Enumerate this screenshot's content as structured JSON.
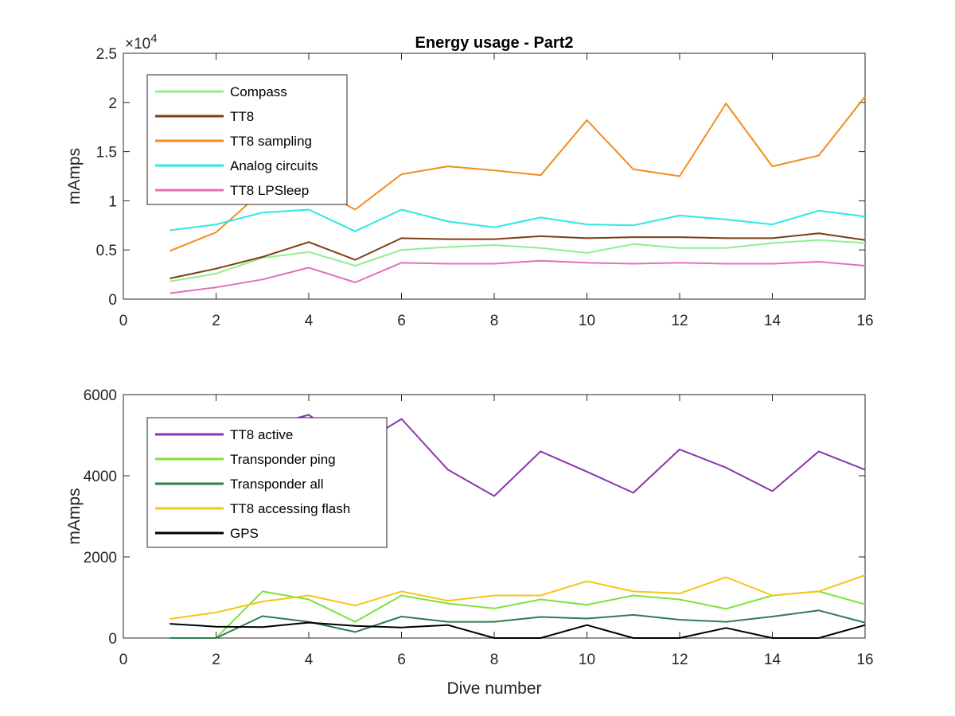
{
  "chart_data": [
    {
      "type": "line",
      "title": "Energy usage - Part2",
      "xlabel": "",
      "ylabel": "mAmps",
      "xlim": [
        0,
        16
      ],
      "ylim": [
        0,
        25000
      ],
      "xticks": [
        0,
        2,
        4,
        6,
        8,
        10,
        12,
        14,
        16
      ],
      "yticks": [
        0,
        5000,
        10000,
        15000,
        20000,
        25000
      ],
      "ytick_labels": [
        "0",
        "0.5",
        "1",
        "1.5",
        "2",
        "2.5"
      ],
      "y_exponent": {
        "base": "×10",
        "power": "4"
      },
      "legend_position": "top-left",
      "grid": false,
      "x": [
        1,
        2,
        3,
        4,
        5,
        6,
        7,
        8,
        9,
        10,
        11,
        12,
        13,
        14,
        15,
        16
      ],
      "series": [
        {
          "name": "Compass",
          "color": "#90ee90",
          "values": [
            1800,
            2600,
            4200,
            4800,
            3400,
            5000,
            5300,
            5500,
            5200,
            4700,
            5600,
            5200,
            5200,
            5700,
            6000,
            5700
          ]
        },
        {
          "name": "TT8",
          "color": "#7b3f13",
          "values": [
            2100,
            3100,
            4300,
            5800,
            4000,
            6200,
            6100,
            6100,
            6400,
            6200,
            6300,
            6300,
            6200,
            6200,
            6700,
            6000
          ]
        },
        {
          "name": "TT8 sampling",
          "color": "#f28c1e",
          "values": [
            4900,
            6800,
            11000,
            11700,
            9100,
            12700,
            13500,
            13100,
            12600,
            18200,
            13200,
            12500,
            19900,
            13500,
            14600,
            20600
          ]
        },
        {
          "name": "Analog circuits",
          "color": "#2ee6e6",
          "values": [
            7000,
            7600,
            8800,
            9100,
            6900,
            9100,
            7900,
            7300,
            8300,
            7600,
            7500,
            8500,
            8100,
            7600,
            9000,
            8400
          ]
        },
        {
          "name": "TT8 LPSleep",
          "color": "#e36fb7",
          "values": [
            600,
            1200,
            2000,
            3200,
            1700,
            3700,
            3600,
            3600,
            3900,
            3700,
            3600,
            3700,
            3600,
            3600,
            3800,
            3400
          ]
        }
      ]
    },
    {
      "type": "line",
      "title": "",
      "xlabel": "Dive number",
      "ylabel": "mAmps",
      "xlim": [
        0,
        16
      ],
      "ylim": [
        0,
        6000
      ],
      "xticks": [
        0,
        2,
        4,
        6,
        8,
        10,
        12,
        14,
        16
      ],
      "yticks": [
        0,
        2000,
        4000,
        6000
      ],
      "ytick_labels": [
        "0",
        "2000",
        "4000",
        "6000"
      ],
      "legend_position": "top-left",
      "grid": false,
      "x": [
        1,
        2,
        3,
        4,
        5,
        6,
        7,
        8,
        9,
        10,
        11,
        12,
        13,
        14,
        15,
        16
      ],
      "series": [
        {
          "name": "TT8 active",
          "color": "#8a35b0",
          "values": [
            5000,
            5000,
            5200,
            5500,
            4700,
            5400,
            4150,
            3500,
            4600,
            4100,
            3580,
            4650,
            4200,
            3620,
            4600,
            4150
          ]
        },
        {
          "name": "Transponder ping",
          "color": "#7ee23a",
          "values": [
            0,
            0,
            1150,
            950,
            400,
            1050,
            850,
            730,
            950,
            820,
            1050,
            950,
            720,
            1050,
            1150,
            830
          ]
        },
        {
          "name": "Transponder all",
          "color": "#2e7d4f",
          "values": [
            0,
            0,
            540,
            400,
            150,
            530,
            400,
            400,
            520,
            480,
            570,
            450,
            400,
            530,
            680,
            380
          ]
        },
        {
          "name": "TT8 accessing flash",
          "color": "#f5c518",
          "values": [
            470,
            630,
            900,
            1050,
            800,
            1150,
            920,
            1050,
            1050,
            1400,
            1150,
            1100,
            1500,
            1050,
            1150,
            1550
          ]
        },
        {
          "name": "GPS",
          "color": "#000000",
          "values": [
            350,
            280,
            270,
            380,
            300,
            260,
            320,
            0,
            0,
            320,
            0,
            0,
            250,
            0,
            0,
            320
          ]
        }
      ]
    }
  ]
}
